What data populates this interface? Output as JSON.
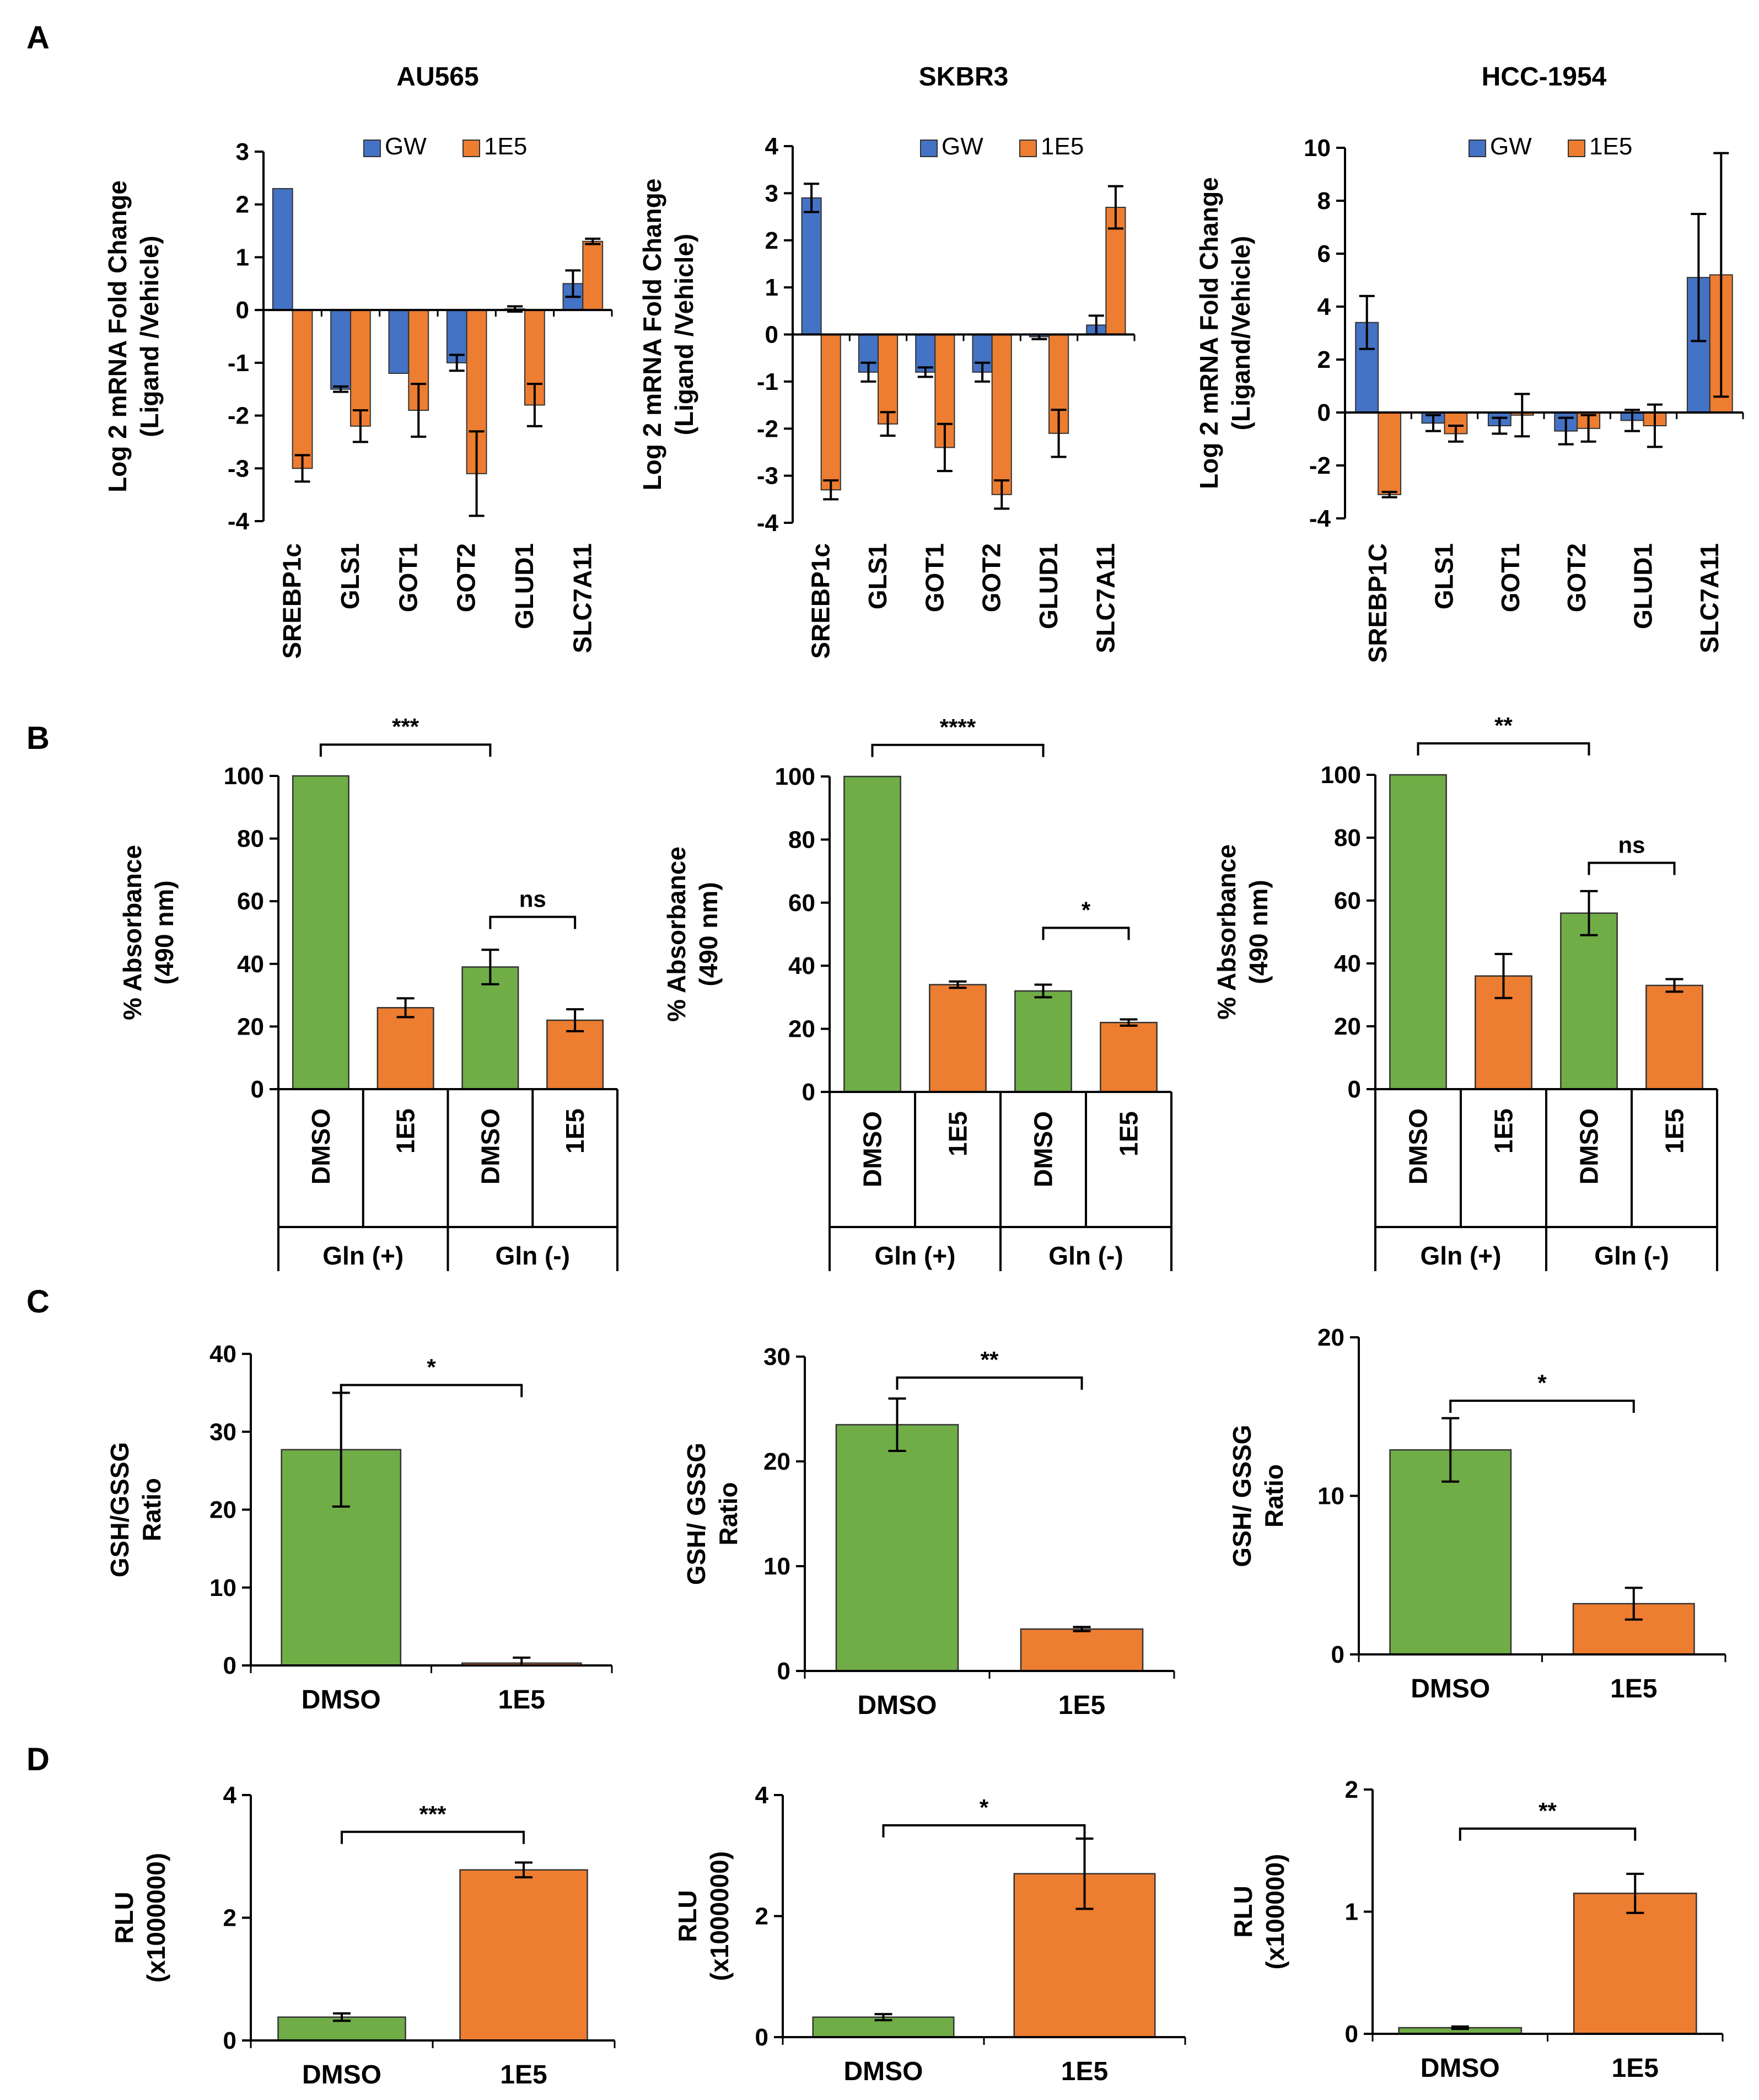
{
  "colors": {
    "gw": "#4472C4",
    "e15": "#ED7D31",
    "dmso": "#70AD47"
  },
  "panel_labels": [
    "A",
    "B",
    "C",
    "D"
  ],
  "chart_data": [
    {
      "id": "A-AU565",
      "panel": "A",
      "type": "bar",
      "title": "AU565",
      "ylabel": [
        "Log 2 mRNA Fold Change",
        "(Ligand /Vehicle)"
      ],
      "ylim": [
        -4,
        3
      ],
      "yticks": [
        3,
        2,
        1,
        0,
        -1,
        -2,
        -3,
        -4
      ],
      "legend": [
        "GW",
        "1E5"
      ],
      "categories": [
        "SREBP1c",
        "GLS1",
        "GOT1",
        "GOT2",
        "GLUD1",
        "SLC7A11"
      ],
      "series": [
        {
          "name": "GW",
          "color": "gw",
          "values": [
            2.3,
            -1.5,
            -1.2,
            -1.0,
            0.02,
            0.5
          ],
          "errors": [
            0.0,
            0.05,
            0.0,
            0.15,
            0.05,
            0.25
          ]
        },
        {
          "name": "1E5",
          "color": "e15",
          "values": [
            -3.0,
            -2.2,
            -1.9,
            -3.1,
            -1.8,
            1.3
          ],
          "errors": [
            0.25,
            0.3,
            0.5,
            0.8,
            0.4,
            0.05
          ]
        }
      ]
    },
    {
      "id": "A-SKBR3",
      "panel": "A",
      "type": "bar",
      "title": "SKBR3",
      "ylabel": [
        "Log 2 mRNA Fold Change",
        "(Ligand /Vehicle)"
      ],
      "ylim": [
        -4,
        4
      ],
      "yticks": [
        4,
        3,
        2,
        1,
        0,
        -1,
        -2,
        -3,
        -4
      ],
      "legend": [
        "GW",
        "1E5"
      ],
      "categories": [
        "SREBP1c",
        "GLS1",
        "GOT1",
        "GOT2",
        "GLUD1",
        "SLC7A11"
      ],
      "series": [
        {
          "name": "GW",
          "color": "gw",
          "values": [
            2.9,
            -0.8,
            -0.8,
            -0.8,
            -0.05,
            0.2
          ],
          "errors": [
            0.3,
            0.2,
            0.1,
            0.2,
            0.05,
            0.2
          ]
        },
        {
          "name": "1E5",
          "color": "e15",
          "values": [
            -3.3,
            -1.9,
            -2.4,
            -3.4,
            -2.1,
            2.7
          ],
          "errors": [
            0.2,
            0.25,
            0.5,
            0.3,
            0.5,
            0.45
          ]
        }
      ]
    },
    {
      "id": "A-HCC1954",
      "panel": "A",
      "type": "bar",
      "title": "HCC-1954",
      "ylabel": [
        "Log 2 mRNA Fold Change",
        "(Ligand/Vehicle)"
      ],
      "ylim": [
        -4,
        10
      ],
      "yticks": [
        10,
        8,
        6,
        4,
        2,
        0,
        -2,
        -4
      ],
      "legend": [
        "GW",
        "1E5"
      ],
      "categories": [
        "SREBP1C",
        "GLS1",
        "GOT1",
        "GOT2",
        "GLUD1",
        "SLC7A11"
      ],
      "series": [
        {
          "name": "GW",
          "color": "gw",
          "values": [
            3.4,
            -0.4,
            -0.5,
            -0.7,
            -0.3,
            5.1
          ],
          "errors": [
            1.0,
            0.3,
            0.3,
            0.5,
            0.4,
            2.4
          ]
        },
        {
          "name": "1E5",
          "color": "e15",
          "values": [
            -3.1,
            -0.8,
            -0.1,
            -0.6,
            -0.5,
            5.2
          ],
          "errors": [
            0.1,
            0.3,
            0.8,
            0.5,
            0.8,
            4.6
          ]
        }
      ]
    },
    {
      "id": "B-AU565",
      "panel": "B",
      "type": "bar",
      "ylabel": [
        "% Absorbance",
        "(490 nm)"
      ],
      "ylim": [
        0,
        100
      ],
      "yticks": [
        100,
        80,
        60,
        40,
        20,
        0
      ],
      "categories": [
        "DMSO",
        "1E5",
        "DMSO",
        "1E5"
      ],
      "groups": [
        "Gln  (+)",
        "Gln  (-)"
      ],
      "values": [
        100,
        26,
        39,
        22
      ],
      "errors": [
        0,
        3,
        5.5,
        3.5
      ],
      "bar_colors": [
        "dmso",
        "e15",
        "dmso",
        "e15"
      ],
      "significance": [
        {
          "from": 0,
          "to": 2,
          "label": "***",
          "y": 110
        },
        {
          "from": 2,
          "to": 3,
          "label": "ns",
          "y": 55
        }
      ]
    },
    {
      "id": "B-SKBR3",
      "panel": "B",
      "type": "bar",
      "ylabel": [
        "% Absorbance",
        "(490 nm)"
      ],
      "ylim": [
        0,
        100
      ],
      "yticks": [
        100,
        80,
        60,
        40,
        20,
        0
      ],
      "categories": [
        "DMSO",
        "1E5",
        "DMSO",
        "1E5"
      ],
      "groups": [
        "Gln  (+)",
        "Gln  (-)"
      ],
      "values": [
        100,
        34,
        32,
        22
      ],
      "errors": [
        0,
        1,
        2,
        1
      ],
      "bar_colors": [
        "dmso",
        "e15",
        "dmso",
        "e15"
      ],
      "significance": [
        {
          "from": 0,
          "to": 2,
          "label": "****",
          "y": 110
        },
        {
          "from": 2,
          "to": 3,
          "label": "*",
          "y": 52
        }
      ]
    },
    {
      "id": "B-HCC1954",
      "panel": "B",
      "type": "bar",
      "ylabel": [
        "% Absorbance",
        "(490 nm)"
      ],
      "ylim": [
        0,
        100
      ],
      "yticks": [
        100,
        80,
        60,
        40,
        20,
        0
      ],
      "categories": [
        "DMSO",
        "1E5",
        "DMSO",
        "1E5"
      ],
      "groups": [
        "Gln  (+)",
        "Gln  (-)"
      ],
      "values": [
        100,
        36,
        56,
        33
      ],
      "errors": [
        0,
        7,
        7,
        2
      ],
      "bar_colors": [
        "dmso",
        "e15",
        "dmso",
        "e15"
      ],
      "significance": [
        {
          "from": 0,
          "to": 2,
          "label": "**",
          "y": 110
        },
        {
          "from": 2,
          "to": 3,
          "label": "ns",
          "y": 72
        }
      ]
    },
    {
      "id": "C-AU565",
      "panel": "C",
      "type": "bar",
      "ylabel": [
        "GSH/GSSG",
        "Ratio"
      ],
      "ylim": [
        0,
        40
      ],
      "yticks": [
        40,
        30,
        20,
        10,
        0
      ],
      "categories": [
        "DMSO",
        "1E5"
      ],
      "values": [
        27.7,
        0.3
      ],
      "errors": [
        7.3,
        0.7
      ],
      "bar_colors": [
        "dmso",
        "e15"
      ],
      "significance": [
        {
          "from": 0,
          "to": 1,
          "label": "*",
          "y": 36
        }
      ]
    },
    {
      "id": "C-SKBR3",
      "panel": "C",
      "type": "bar",
      "ylabel": [
        "GSH/ GSSG",
        "Ratio"
      ],
      "ylim": [
        0,
        30
      ],
      "yticks": [
        30,
        20,
        10,
        0
      ],
      "categories": [
        "DMSO",
        "1E5"
      ],
      "values": [
        23.5,
        4
      ],
      "errors": [
        2.5,
        0.2
      ],
      "bar_colors": [
        "dmso",
        "e15"
      ],
      "significance": [
        {
          "from": 0,
          "to": 1,
          "label": "**",
          "y": 28
        }
      ]
    },
    {
      "id": "C-HCC1954",
      "panel": "C",
      "type": "bar",
      "ylabel": [
        "GSH/ GSSG",
        "Ratio"
      ],
      "ylim": [
        0,
        20
      ],
      "yticks": [
        20,
        10,
        0
      ],
      "categories": [
        "DMSO",
        "1E5"
      ],
      "values": [
        12.9,
        3.2
      ],
      "errors": [
        2,
        1
      ],
      "bar_colors": [
        "dmso",
        "e15"
      ],
      "significance": [
        {
          "from": 0,
          "to": 1,
          "label": "*",
          "y": 16
        }
      ]
    },
    {
      "id": "D-AU565",
      "panel": "D",
      "type": "bar",
      "ylabel": [
        "RLU",
        "(x1000000)"
      ],
      "ylim": [
        0,
        4
      ],
      "yticks": [
        4,
        2,
        0
      ],
      "categories": [
        "DMSO",
        "1E5"
      ],
      "values": [
        0.38,
        2.78
      ],
      "errors": [
        0.06,
        0.12
      ],
      "bar_colors": [
        "dmso",
        "e15"
      ],
      "significance": [
        {
          "from": 0,
          "to": 1,
          "label": "***",
          "y": 3.4
        }
      ]
    },
    {
      "id": "D-SKBR3",
      "panel": "D",
      "type": "bar",
      "ylabel": [
        "RLU",
        "(x1000000)"
      ],
      "ylim": [
        0,
        4
      ],
      "yticks": [
        4,
        2,
        0
      ],
      "categories": [
        "DMSO",
        "1E5"
      ],
      "values": [
        0.33,
        2.7
      ],
      "errors": [
        0.05,
        0.58
      ],
      "bar_colors": [
        "dmso",
        "e15"
      ],
      "significance": [
        {
          "from": 0,
          "to": 1,
          "label": "*",
          "y": 3.5
        }
      ]
    },
    {
      "id": "D-HCC1954",
      "panel": "D",
      "type": "bar",
      "ylabel": [
        "RLU",
        "(x100000)"
      ],
      "ylim": [
        0,
        2
      ],
      "yticks": [
        2,
        1,
        0
      ],
      "categories": [
        "DMSO",
        "1E5"
      ],
      "values": [
        0.05,
        1.15
      ],
      "errors": [
        0.01,
        0.16
      ],
      "bar_colors": [
        "dmso",
        "e15"
      ],
      "significance": [
        {
          "from": 0,
          "to": 1,
          "label": "**",
          "y": 1.68
        }
      ]
    }
  ]
}
